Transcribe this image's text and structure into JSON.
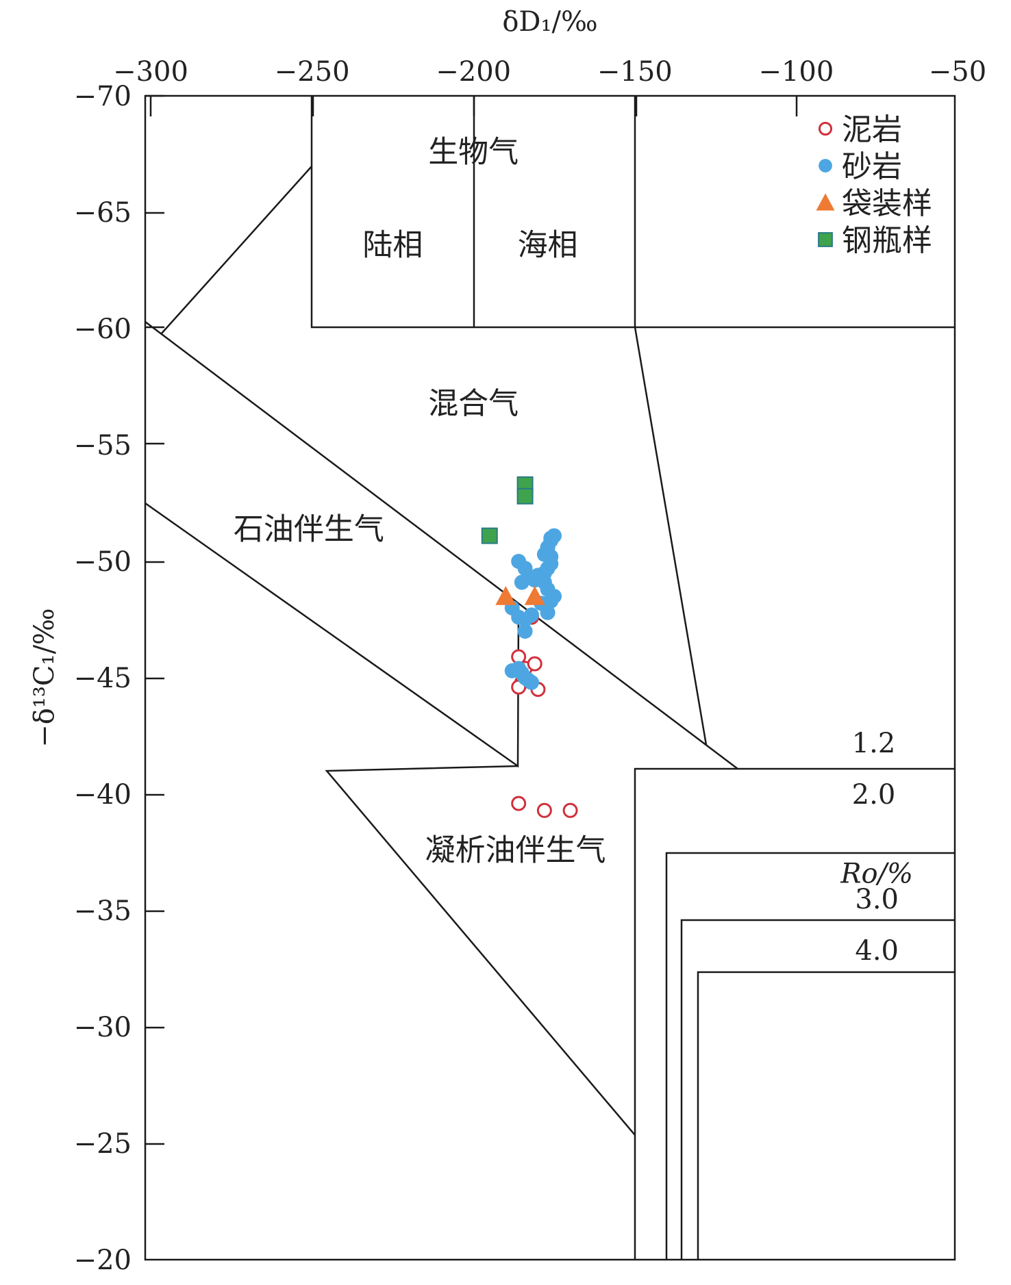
{
  "chart_data": {
    "type": "scatter",
    "xlabel": "δD₁/‰",
    "ylabel": "−δ¹³C₁/‰",
    "xlim": [
      -300,
      -50
    ],
    "ylim": [
      -70,
      -20
    ],
    "x_ticks": [
      -300,
      -250,
      -200,
      -150,
      -100,
      -50
    ],
    "y_ticks": [
      -70,
      -65,
      -60,
      -55,
      -50,
      -45,
      -40,
      -35,
      -30,
      -25,
      -20
    ],
    "x_tick_labels": [
      "−300",
      "−250",
      "−200",
      "−150",
      "−100",
      "−50"
    ],
    "y_tick_labels": [
      "−70",
      "−65",
      "−60",
      "−55",
      "−50",
      "−45",
      "−40",
      "−35",
      "−30",
      "−25",
      "−20"
    ],
    "grid": false,
    "legend_position": "top-right",
    "region_labels": [
      {
        "text": "生物气",
        "x": -200,
        "y": -67.6
      },
      {
        "text": "陆相",
        "x": -225,
        "y": -63.6
      },
      {
        "text": "海相",
        "x": -177,
        "y": -63.6
      },
      {
        "text": "混合气",
        "x": -200,
        "y": -56.8
      },
      {
        "text": "石油伴生气",
        "x": -251,
        "y": -51.4
      },
      {
        "text": "凝析油伴生气",
        "x": -187,
        "y": -37.6
      }
    ],
    "ro_labels": [
      {
        "text": "1.2",
        "x": -76,
        "y": -42.2
      },
      {
        "text": "2.0",
        "x": -76,
        "y": -40.0
      },
      {
        "text": "Ro/%",
        "x": -75,
        "y": -36.6
      },
      {
        "text": "3.0",
        "x": -75,
        "y": -35.5
      },
      {
        "text": "4.0",
        "x": -75,
        "y": -33.3
      }
    ],
    "series": [
      {
        "name": "泥岩",
        "marker": "open-circle",
        "color": "#d0303c",
        "x": [
          -186,
          -184,
          -185,
          -186,
          -181,
          -180,
          -182,
          -186,
          -178,
          -170
        ],
        "y": [
          -45.9,
          -45.4,
          -44.8,
          -44.6,
          -45.6,
          -44.5,
          -47.6,
          -39.6,
          -39.3,
          -39.3
        ]
      },
      {
        "name": "砂岩",
        "marker": "filled-circle",
        "color": "#4da6e2",
        "x": [
          -186,
          -184,
          -185,
          -182,
          -181,
          -180,
          -178,
          -177,
          -176,
          -176,
          -178,
          -177,
          -176,
          -175,
          -176,
          -177,
          -178,
          -177,
          -175,
          -176,
          -179,
          -177,
          -188,
          -186,
          -184,
          -182,
          -184,
          -188,
          -186,
          -185,
          -184,
          -183,
          -182
        ],
        "y": [
          -50.0,
          -49.7,
          -49.1,
          -49.3,
          -49.2,
          -49.4,
          -49.5,
          -49.7,
          -49.9,
          -50.2,
          -50.3,
          -50.6,
          -50.9,
          -51.1,
          -51.0,
          -50.6,
          -49.1,
          -48.8,
          -48.5,
          -48.3,
          -48.2,
          -47.8,
          -48.0,
          -47.6,
          -47.5,
          -47.7,
          -47.0,
          -45.3,
          -45.4,
          -45.2,
          -45.0,
          -44.9,
          -44.8
        ]
      },
      {
        "name": "袋装样",
        "marker": "triangle",
        "color": "#ee7a33",
        "x": [
          -190,
          -181
        ],
        "y": [
          -48.5,
          -48.5
        ]
      },
      {
        "name": "钢瓶样",
        "marker": "square",
        "color": "#3fa34d",
        "x": [
          -195,
          -184,
          -184
        ],
        "y": [
          -51.1,
          -53.3,
          -52.8
        ]
      }
    ]
  }
}
